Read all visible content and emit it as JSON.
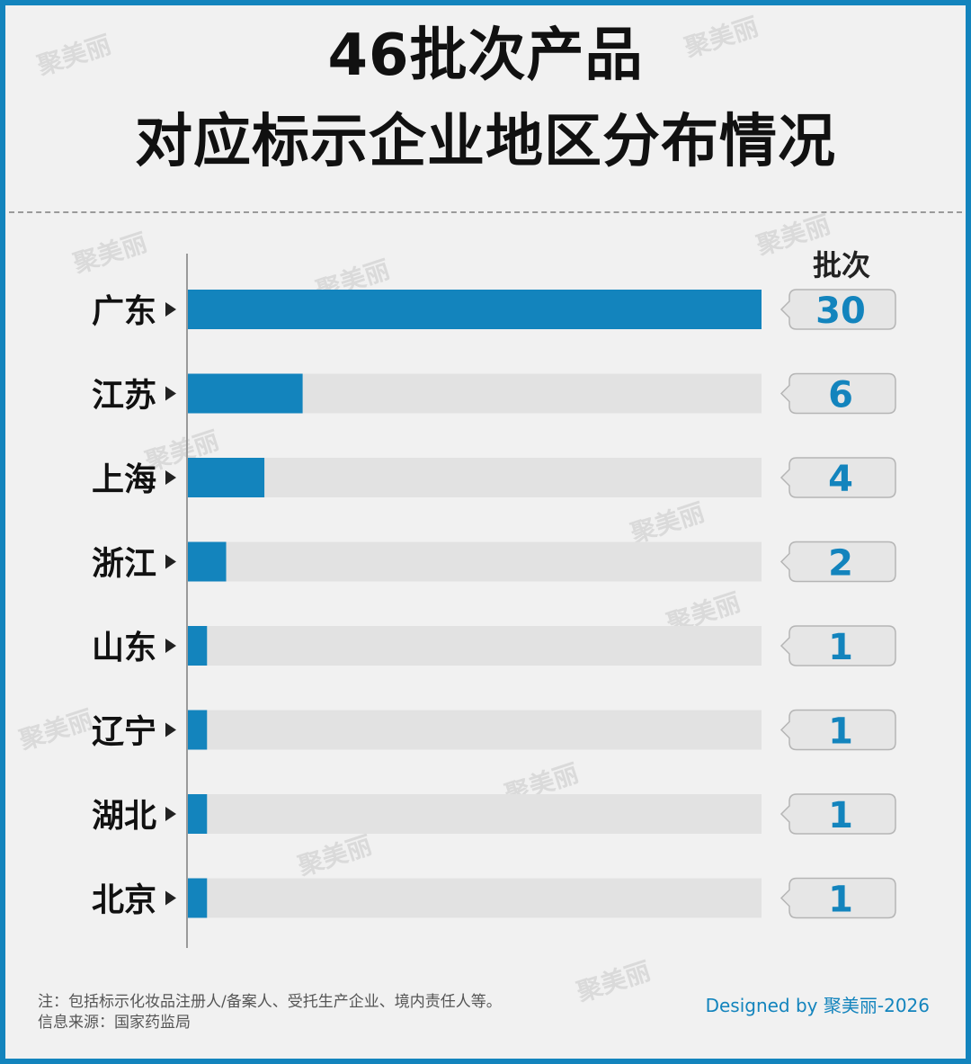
{
  "title_line1": "46批次产品",
  "title_line2": "对应标示企业地区分布情况",
  "value_header": "批次",
  "footnote_line1": "注：包括标示化妆品注册人/备案人、受托生产企业、境内责任人等。",
  "footnote_line2": "信息来源：国家药监局",
  "credit": "Designed by 聚美丽-2026",
  "watermark": "聚美丽",
  "colors": {
    "bar": "#1384bd",
    "track": "#e2e2e2",
    "frame": "#1384bd",
    "background": "#f1f1f1",
    "value_text": "#1384bd"
  },
  "chart_data": {
    "type": "bar",
    "orientation": "horizontal",
    "categories": [
      "广东",
      "江苏",
      "上海",
      "浙江",
      "山东",
      "辽宁",
      "湖北",
      "北京"
    ],
    "values": [
      30,
      6,
      4,
      2,
      1,
      1,
      1,
      1
    ],
    "xlim": [
      0,
      30
    ],
    "grid": false,
    "title": "46批次产品 对应标示企业地区分布情况"
  }
}
